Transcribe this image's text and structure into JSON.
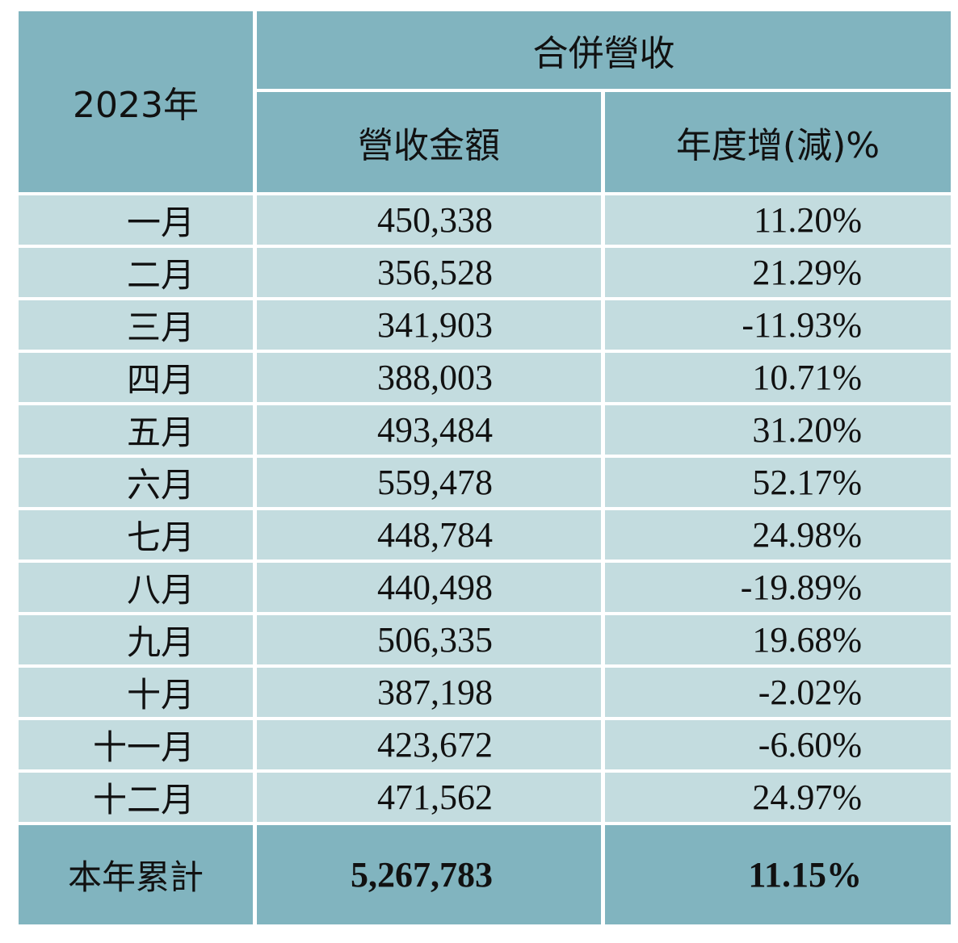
{
  "header": {
    "year_label": "2023年",
    "group_label": "合併營收",
    "col_amount": "營收金額",
    "col_yoy": "年度增(減)%"
  },
  "rows": [
    {
      "month": "一月",
      "amount": "450,338",
      "yoy": "11.20%"
    },
    {
      "month": "二月",
      "amount": "356,528",
      "yoy": "21.29%"
    },
    {
      "month": "三月",
      "amount": "341,903",
      "yoy": "-11.93%"
    },
    {
      "month": "四月",
      "amount": "388,003",
      "yoy": "10.71%"
    },
    {
      "month": "五月",
      "amount": "493,484",
      "yoy": "31.20%"
    },
    {
      "month": "六月",
      "amount": "559,478",
      "yoy": "52.17%"
    },
    {
      "month": "七月",
      "amount": "448,784",
      "yoy": "24.98%"
    },
    {
      "month": "八月",
      "amount": "440,498",
      "yoy": "-19.89%"
    },
    {
      "month": "九月",
      "amount": "506,335",
      "yoy": "19.68%"
    },
    {
      "month": "十月",
      "amount": "387,198",
      "yoy": "-2.02%"
    },
    {
      "month": "十一月",
      "amount": "423,672",
      "yoy": "-6.60%"
    },
    {
      "month": "十二月",
      "amount": "471,562",
      "yoy": "24.97%"
    }
  ],
  "total": {
    "label": "本年累計",
    "amount": "5,267,783",
    "yoy": "11.15%"
  },
  "colors": {
    "header_bg": "#81b4bf",
    "body_bg": "#c3dcdf"
  }
}
